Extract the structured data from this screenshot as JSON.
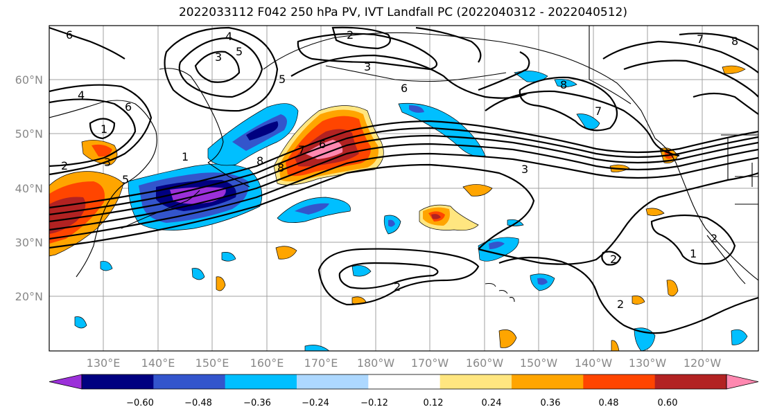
{
  "title": "2022033112 F042 250 hPa PV, IVT Landfall PC (2022040312 - 2022040512)",
  "lat_labels": [
    "60°N",
    "50°N",
    "40°N",
    "30°N",
    "20°N"
  ],
  "lon_labels": [
    "130°E",
    "140°E",
    "150°E",
    "160°E",
    "170°E",
    "180°W",
    "170°W",
    "160°W",
    "150°W",
    "140°W",
    "130°W",
    "120°W"
  ],
  "colorbar": {
    "colors": [
      "#9b30d9",
      "#000080",
      "#3355cc",
      "#00bfff",
      "#add8ff",
      "#ffffff",
      "#ffe680",
      "#ffa500",
      "#ff4500",
      "#b22222",
      "#ff88b0"
    ],
    "tick_labels": [
      "−0.60",
      "−0.48",
      "−0.36",
      "−0.24",
      "−0.12",
      "0.12",
      "0.24",
      "0.36",
      "0.48",
      "0.60"
    ]
  },
  "contour_labels": [
    "6",
    "2",
    "4",
    "5",
    "3",
    "3",
    "8",
    "6",
    "8",
    "4",
    "2",
    "1",
    "2",
    "3",
    "5",
    "6",
    "8",
    "7",
    "6",
    "5",
    "2",
    "1",
    "7",
    "3",
    "7",
    "2",
    "1",
    "8",
    "2"
  ]
}
